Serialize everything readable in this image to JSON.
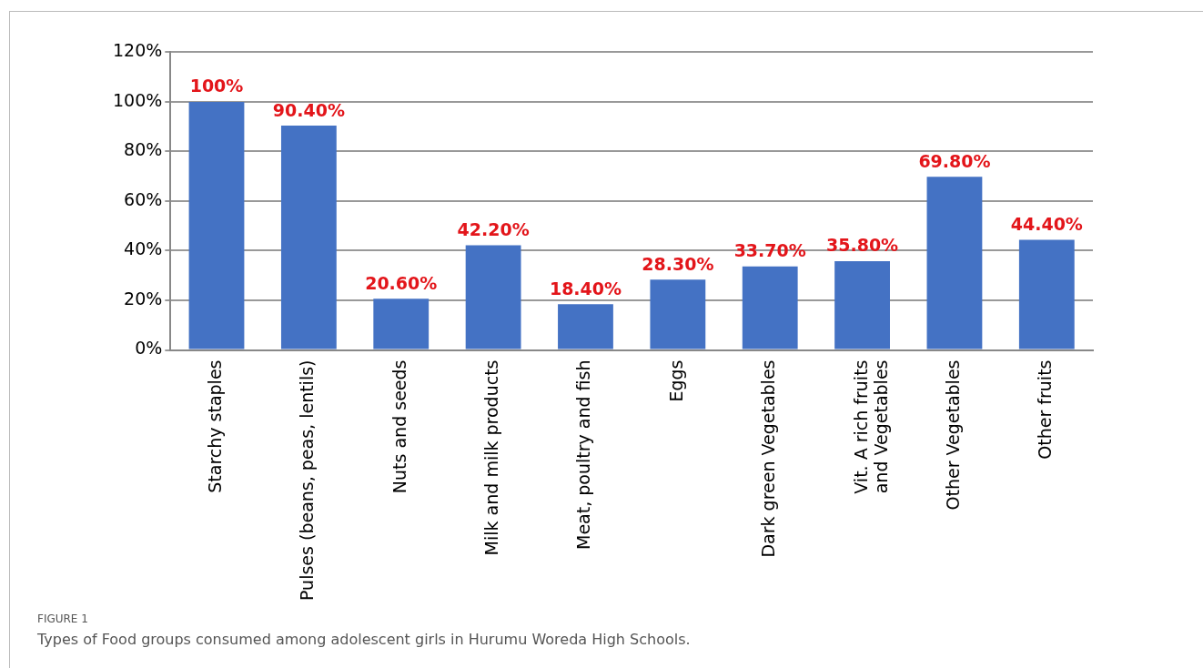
{
  "chart_data": {
    "type": "bar",
    "categories": [
      "Starchy staples",
      "Pulses (beans, peas, lentils)",
      "Nuts and seeds",
      "Milk and milk products",
      "Meat, poultry and fish",
      "Eggs",
      "Dark green Vegetables",
      "Vit. A rich fruits and Vegetables",
      "Other Vegetables",
      "Other fruits"
    ],
    "values": [
      100,
      90.4,
      20.6,
      42.2,
      18.4,
      28.3,
      33.7,
      35.8,
      69.8,
      44.4
    ],
    "value_labels": [
      "100%",
      "90.40%",
      "20.60%",
      "42.20%",
      "18.40%",
      "28.30%",
      "33.70%",
      "35.80%",
      "69.80%",
      "44.40%"
    ],
    "color": "#4472c4",
    "ylim": [
      0,
      120
    ],
    "yticks": [
      {
        "value": 0,
        "label": "0%"
      },
      {
        "value": 20,
        "label": "20%"
      },
      {
        "value": 40,
        "label": "40%"
      },
      {
        "value": 60,
        "label": "60%"
      },
      {
        "value": 80,
        "label": "80%"
      },
      {
        "value": 100,
        "label": "100%"
      },
      {
        "value": 120,
        "label": "120%"
      }
    ],
    "grid": "y",
    "legend": false,
    "annotations": [
      "FIGURE 1",
      "Types of Food groups consumed among adolescent girls in Hurumu Woreda High Schools."
    ]
  }
}
